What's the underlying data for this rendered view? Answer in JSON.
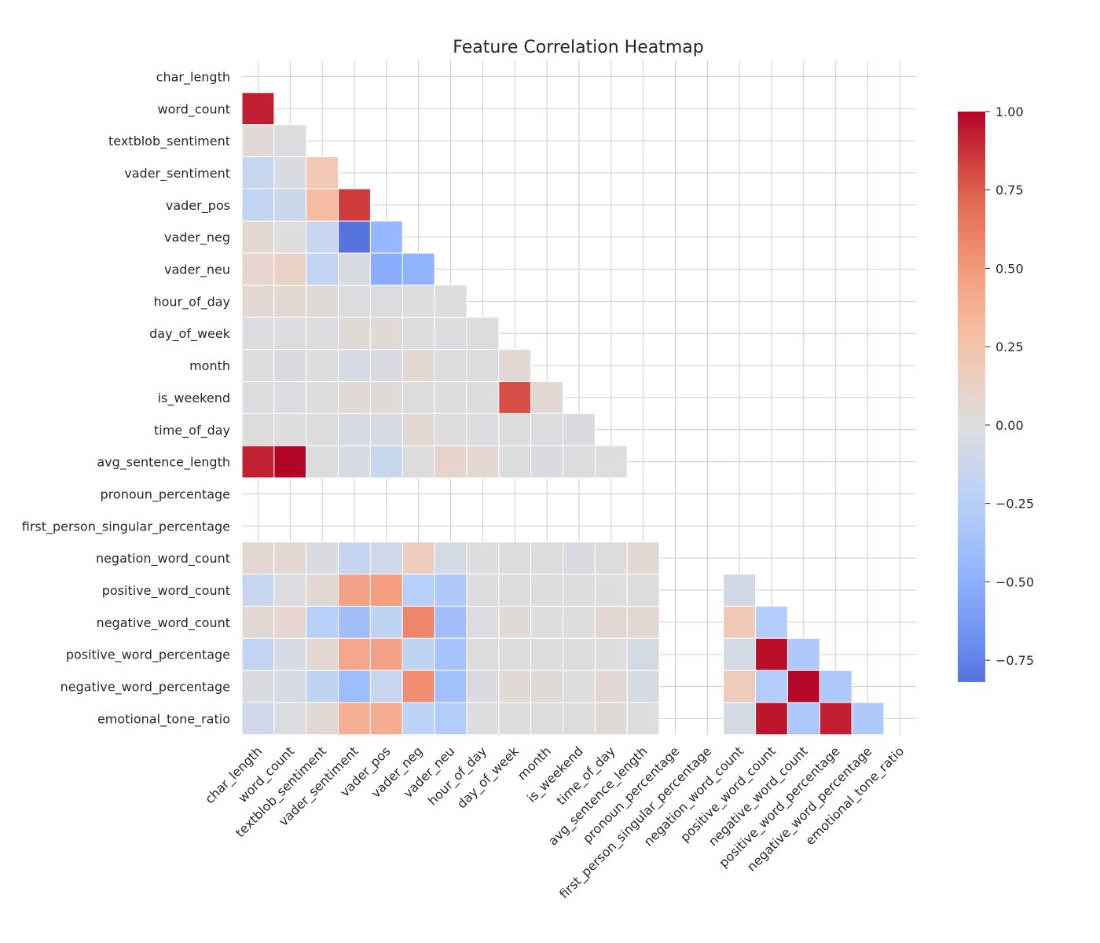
{
  "chart_data": {
    "type": "heatmap",
    "title": "Feature Correlation Heatmap",
    "xlabel": "",
    "ylabel": "",
    "grid": true,
    "mask": "upper-triangle (diagonal and above hidden)",
    "colormap": "coolwarm",
    "legend_placement": "right (colorbar)",
    "colorbar": {
      "range": [
        -0.82,
        1.0
      ],
      "ticks": [
        1.0,
        0.75,
        0.5,
        0.25,
        0.0,
        -0.25,
        -0.5,
        -0.75
      ],
      "tick_labels": [
        "1.00",
        "0.75",
        "0.50",
        "0.25",
        "0.00",
        "−0.25",
        "−0.50",
        "−0.75"
      ]
    },
    "labels": [
      "char_length",
      "word_count",
      "textblob_sentiment",
      "vader_sentiment",
      "vader_pos",
      "vader_neg",
      "vader_neu",
      "hour_of_day",
      "day_of_week",
      "month",
      "is_weekend",
      "time_of_day",
      "avg_sentence_length",
      "pronoun_percentage",
      "first_person_singular_percentage",
      "negation_word_count",
      "positive_word_count",
      "negative_word_count",
      "positive_word_percentage",
      "negative_word_percentage",
      "emotional_tone_ratio"
    ],
    "rows": [
      [],
      [
        0.93
      ],
      [
        0.04,
        -0.02
      ],
      [
        -0.15,
        -0.03,
        0.22
      ],
      [
        -0.18,
        -0.12,
        0.3,
        0.85
      ],
      [
        0.06,
        0.0,
        -0.15,
        -0.82,
        -0.45
      ],
      [
        0.08,
        0.12,
        -0.18,
        -0.04,
        -0.52,
        -0.48
      ],
      [
        0.06,
        0.06,
        0.03,
        -0.02,
        -0.02,
        0.0,
        0.01
      ],
      [
        -0.02,
        -0.02,
        -0.02,
        0.03,
        0.04,
        0.0,
        -0.02,
        -0.01
      ],
      [
        0.0,
        -0.03,
        0.0,
        -0.05,
        -0.04,
        0.06,
        -0.01,
        -0.02,
        0.05
      ],
      [
        -0.02,
        -0.02,
        0.0,
        0.04,
        0.03,
        -0.01,
        0.0,
        0.0,
        0.8,
        0.05
      ],
      [
        0.01,
        0.0,
        0.0,
        -0.05,
        -0.05,
        0.06,
        -0.01,
        -0.02,
        -0.01,
        -0.02,
        -0.03
      ],
      [
        0.92,
        1.0,
        -0.02,
        -0.05,
        -0.14,
        -0.01,
        0.1,
        0.07,
        -0.02,
        -0.03,
        -0.02,
        0.0
      ],
      [
        null,
        null,
        null,
        null,
        null,
        null,
        null,
        null,
        null,
        null,
        null,
        null,
        null
      ],
      [
        null,
        null,
        null,
        null,
        null,
        null,
        null,
        null,
        null,
        null,
        null,
        null,
        null,
        null
      ],
      [
        0.06,
        0.06,
        -0.03,
        -0.17,
        -0.1,
        0.16,
        -0.06,
        0.0,
        -0.01,
        -0.01,
        -0.03,
        -0.01,
        0.06,
        null,
        null
      ],
      [
        -0.15,
        -0.02,
        0.05,
        0.45,
        0.48,
        -0.25,
        -0.3,
        0.0,
        -0.01,
        -0.01,
        -0.02,
        0.0,
        -0.01,
        null,
        null,
        -0.08
      ],
      [
        0.05,
        0.08,
        -0.25,
        -0.38,
        -0.2,
        0.58,
        -0.38,
        -0.02,
        0.03,
        0.0,
        0.0,
        0.05,
        0.06,
        null,
        null,
        0.2,
        -0.28
      ],
      [
        -0.18,
        -0.05,
        0.06,
        0.42,
        0.45,
        -0.2,
        -0.35,
        -0.01,
        -0.01,
        -0.01,
        -0.01,
        0.0,
        -0.06,
        null,
        null,
        -0.06,
        0.97,
        -0.3
      ],
      [
        -0.03,
        -0.05,
        -0.2,
        -0.4,
        -0.15,
        0.55,
        -0.37,
        -0.03,
        0.04,
        0.03,
        0.0,
        0.05,
        -0.05,
        null,
        null,
        0.18,
        -0.28,
        0.99,
        -0.3
      ],
      [
        -0.1,
        -0.02,
        0.05,
        0.38,
        0.4,
        -0.22,
        -0.28,
        0.0,
        -0.01,
        -0.01,
        -0.01,
        0.03,
        0.0,
        null,
        null,
        -0.06,
        0.95,
        -0.32,
        0.93,
        -0.3
      ]
    ]
  }
}
